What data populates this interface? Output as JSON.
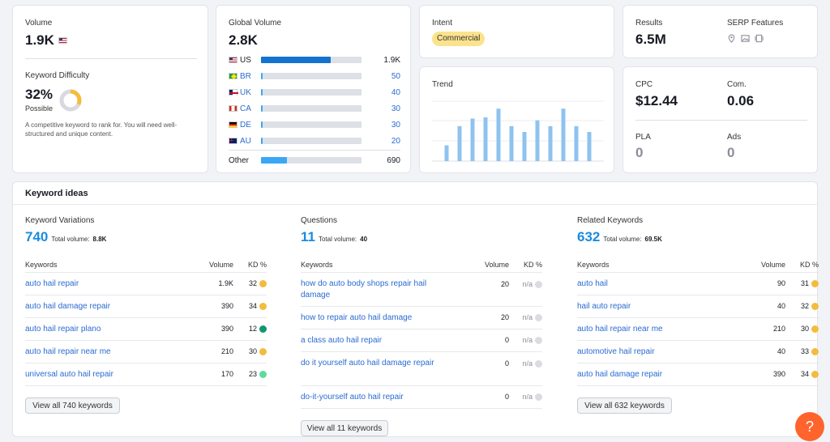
{
  "volume": {
    "label": "Volume",
    "value": "1.9K"
  },
  "kd": {
    "label": "Keyword Difficulty",
    "value": "32%",
    "sub": "Possible",
    "percent": 32,
    "desc": "A competitive keyword to rank for. You will need well-structured and unique content."
  },
  "global": {
    "label": "Global Volume",
    "value": "2.8K",
    "rows": [
      {
        "code": "US",
        "value": "1.9K",
        "fraction": 0.69,
        "flag": "us"
      },
      {
        "code": "BR",
        "value": "50",
        "fraction": 0.02,
        "flag": "br"
      },
      {
        "code": "UK",
        "value": "40",
        "fraction": 0.015,
        "flag": "uk"
      },
      {
        "code": "CA",
        "value": "30",
        "fraction": 0.012,
        "flag": "ca"
      },
      {
        "code": "DE",
        "value": "30",
        "fraction": 0.012,
        "flag": "de"
      },
      {
        "code": "AU",
        "value": "20",
        "fraction": 0.01,
        "flag": "au"
      }
    ],
    "other": {
      "label": "Other",
      "value": "690",
      "fraction": 0.26
    }
  },
  "intent": {
    "label": "Intent",
    "badge": "Commercial"
  },
  "trend": {
    "label": "Trend",
    "values": [
      0.27,
      0.6,
      0.73,
      0.75,
      0.9,
      0.6,
      0.5,
      0.7,
      0.6,
      0.9,
      0.6,
      0.5
    ]
  },
  "results": {
    "label": "Results",
    "value": "6.5M"
  },
  "serp": {
    "label": "SERP Features",
    "icons": [
      "location-icon",
      "image-icon",
      "video-icon"
    ]
  },
  "cpc": {
    "label": "CPC",
    "value": "$12.44"
  },
  "com": {
    "label": "Com.",
    "value": "0.06"
  },
  "pla": {
    "label": "PLA",
    "value": "0"
  },
  "ads": {
    "label": "Ads",
    "value": "0"
  },
  "ideas": {
    "title": "Keyword ideas",
    "cols": {
      "kw": "Keywords",
      "vol": "Volume",
      "kd": "KD %"
    },
    "total_label": "Total volume:",
    "sections": [
      {
        "title": "Keyword Variations",
        "count": "740",
        "total": "8.8K",
        "button": "View all 740 keywords",
        "rows": [
          {
            "kw": "auto hail repair",
            "vol": "1.9K",
            "kd": "32",
            "color": "#f2bd3c"
          },
          {
            "kw": "auto hail damage repair",
            "vol": "390",
            "kd": "34",
            "color": "#f2bd3c"
          },
          {
            "kw": "auto hail repair plano",
            "vol": "390",
            "kd": "12",
            "color": "#0f9770"
          },
          {
            "kw": "auto hail repair near me",
            "vol": "210",
            "kd": "30",
            "color": "#f2bd3c"
          },
          {
            "kw": "universal auto hail repair",
            "vol": "170",
            "kd": "23",
            "color": "#5bdc9c"
          }
        ]
      },
      {
        "title": "Questions",
        "count": "11",
        "total": "40",
        "button": "View all 11 keywords",
        "rows": [
          {
            "kw": "how do auto body shops repair hail damage",
            "vol": "20",
            "kd": "n/a",
            "color": "#dadce1"
          },
          {
            "kw": "how to repair auto hail damage",
            "vol": "20",
            "kd": "n/a",
            "color": "#dadce1"
          },
          {
            "kw": "a class auto hail repair",
            "vol": "0",
            "kd": "n/a",
            "color": "#dadce1"
          },
          {
            "kw": "do it yourself auto hail damage repair",
            "vol": "0",
            "kd": "n/a",
            "color": "#dadce1"
          },
          {
            "kw": "do-it-yourself auto hail repair",
            "vol": "0",
            "kd": "n/a",
            "color": "#dadce1"
          }
        ]
      },
      {
        "title": "Related Keywords",
        "count": "632",
        "total": "69.5K",
        "button": "View all 632 keywords",
        "rows": [
          {
            "kw": "auto hail",
            "vol": "90",
            "kd": "31",
            "color": "#f2bd3c"
          },
          {
            "kw": "hail auto repair",
            "vol": "40",
            "kd": "32",
            "color": "#f2bd3c"
          },
          {
            "kw": "auto hail repair near me",
            "vol": "210",
            "kd": "30",
            "color": "#f2bd3c"
          },
          {
            "kw": "automotive hail repair",
            "vol": "40",
            "kd": "33",
            "color": "#f2bd3c"
          },
          {
            "kw": "auto hail damage repair",
            "vol": "390",
            "kd": "34",
            "color": "#f2bd3c"
          }
        ]
      }
    ]
  },
  "help": {
    "label": "?"
  }
}
